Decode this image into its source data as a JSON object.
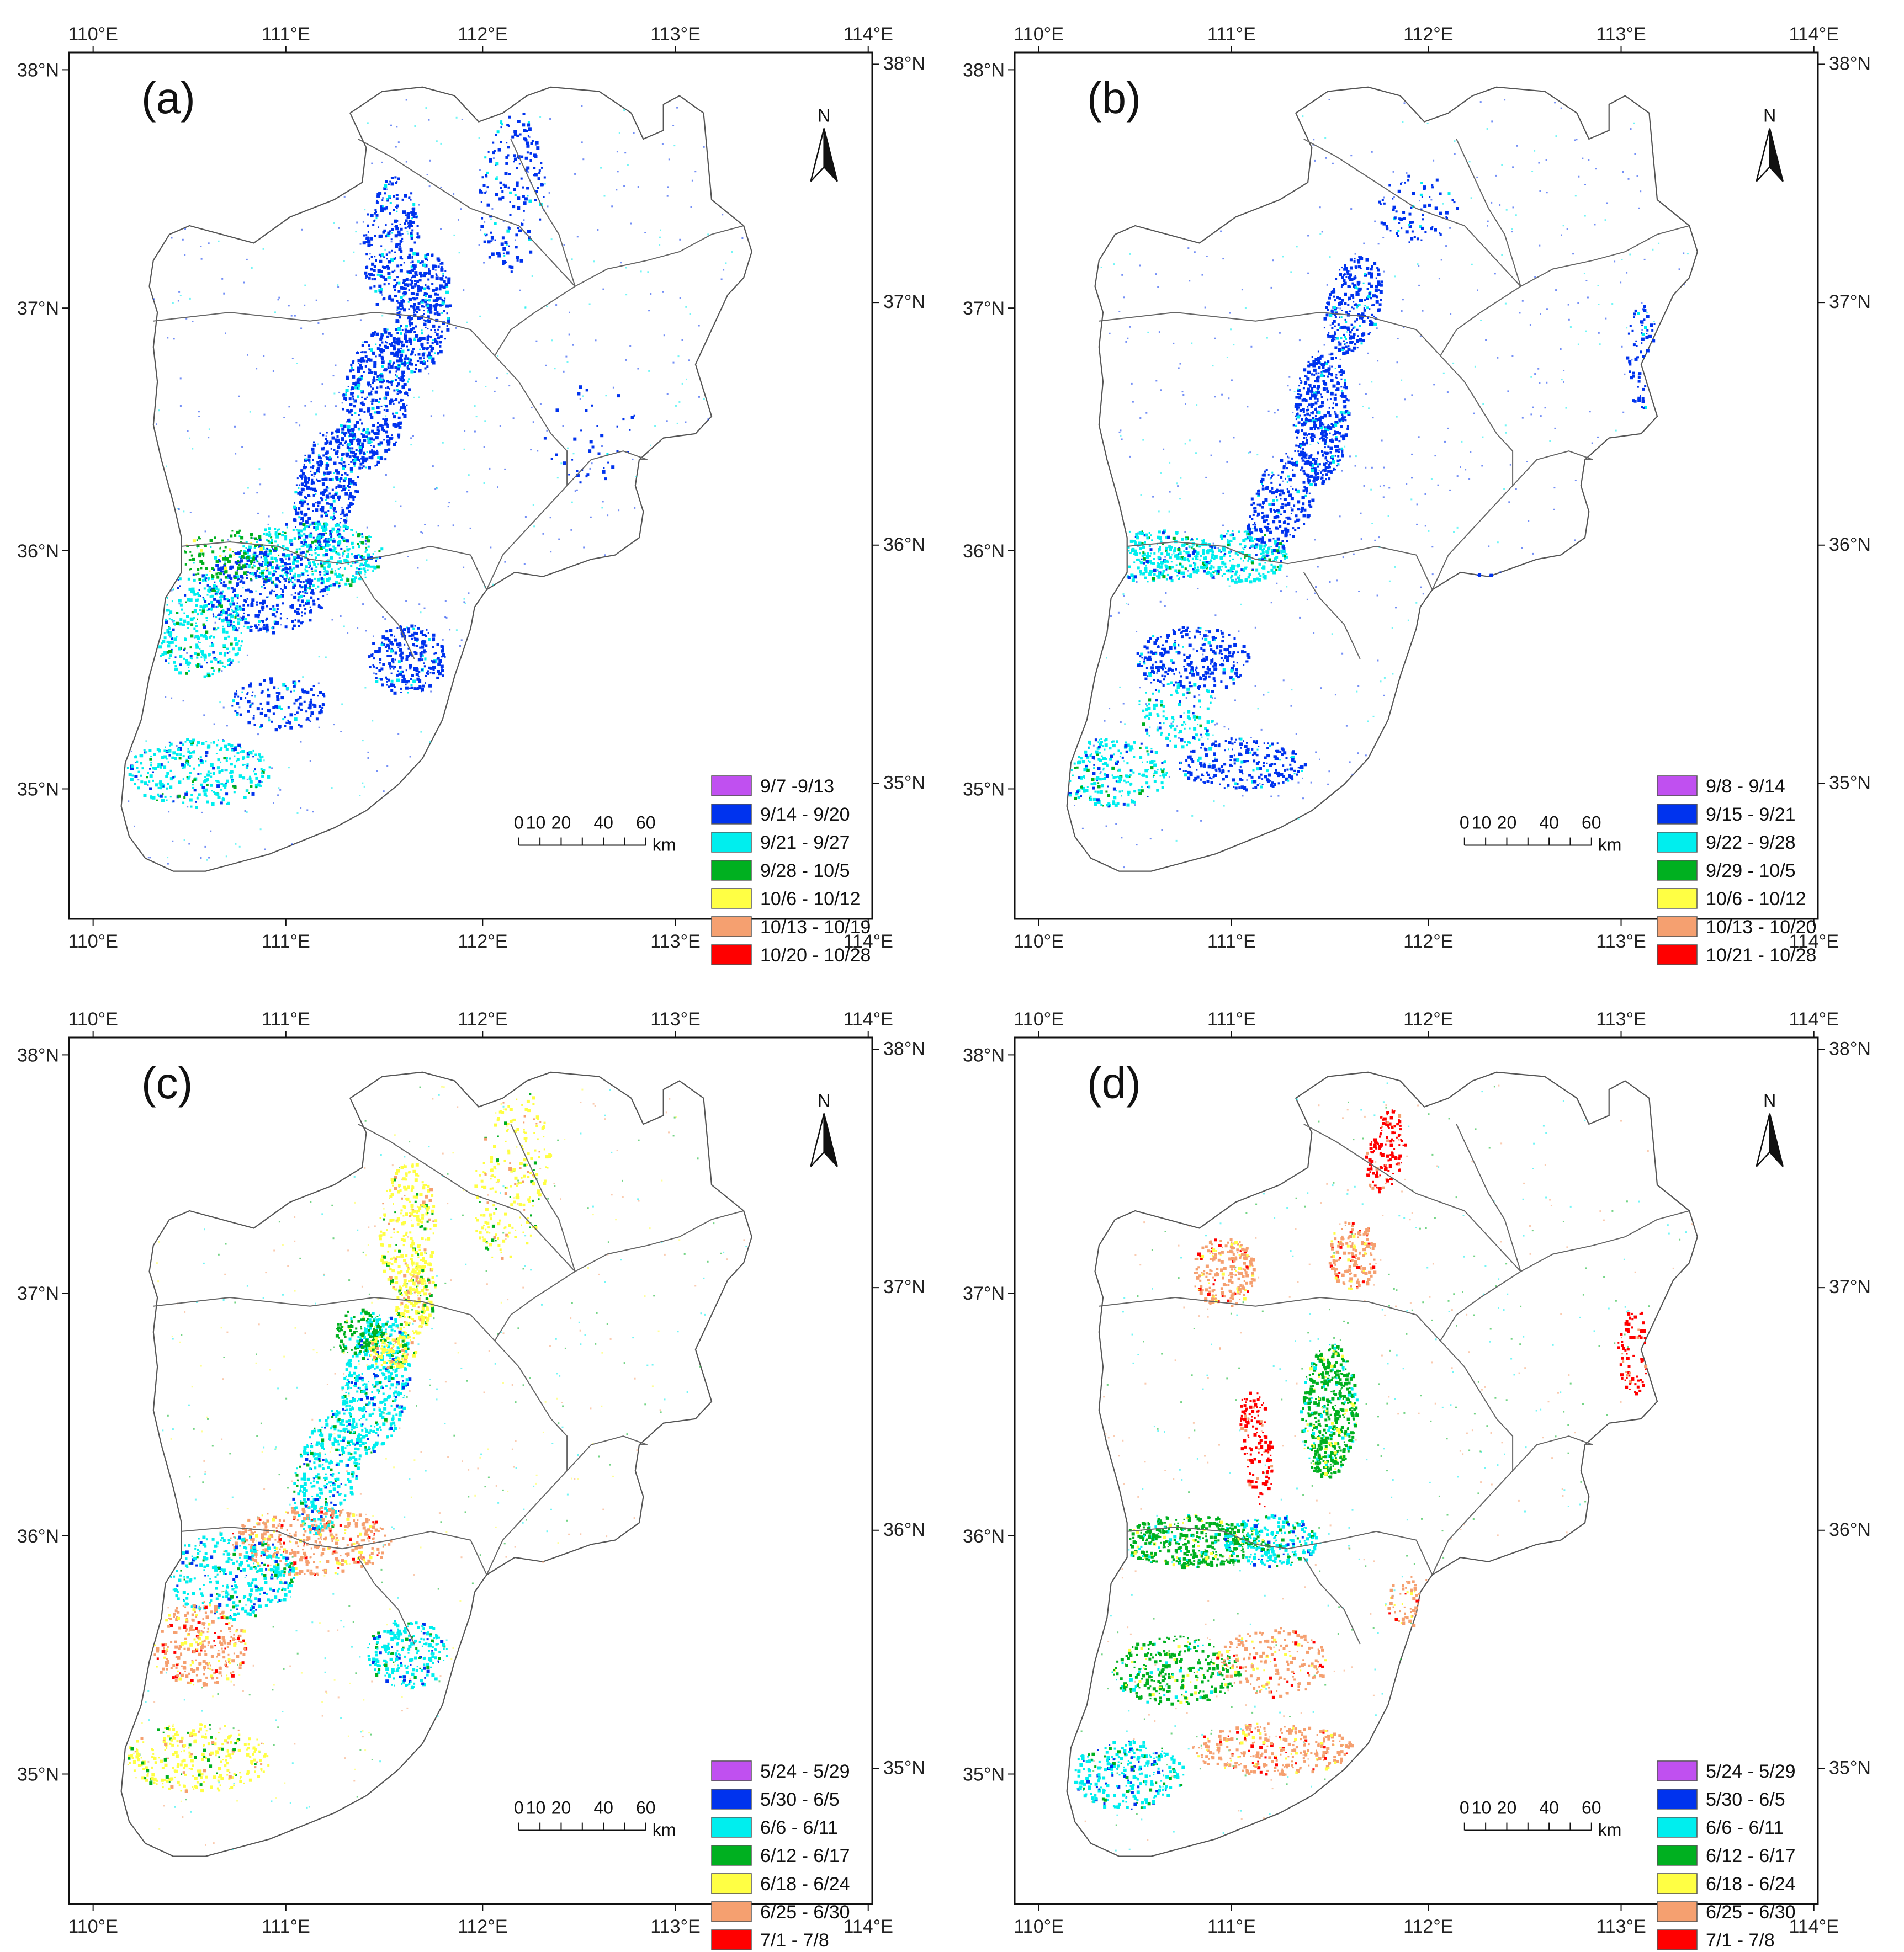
{
  "figure": {
    "x_axis": {
      "ticks": [
        "110°E",
        "111°E",
        "112°E",
        "113°E",
        "114°E"
      ]
    },
    "y_axis": {
      "ticks": [
        "38°N",
        "37°N",
        "36°N",
        "35°N"
      ]
    },
    "north_arrow_label": "N",
    "scale_bar": {
      "labels": [
        "0",
        "10",
        "20",
        "40",
        "60"
      ],
      "unit": "km"
    },
    "colors": {
      "c1": "#c050f0",
      "c2": "#0033ee",
      "c3": "#00eeee",
      "c4": "#00b020",
      "c5": "#ffff44",
      "c6": "#f5a070",
      "c7": "#ff0000"
    },
    "panels": [
      {
        "label": "(a)",
        "id": "a",
        "legend": [
          "9/7 -9/13",
          "9/14 - 9/20",
          "9/21 - 9/27",
          "9/28 - 10/5",
          "10/6 - 10/12",
          "10/13 - 10/19",
          "10/20 - 10/28"
        ]
      },
      {
        "label": "(b)",
        "id": "b",
        "legend": [
          "9/8 - 9/14",
          "9/15 - 9/21",
          "9/22 - 9/28",
          "9/29 - 10/5",
          "10/6 - 10/12",
          "10/13 - 10/20",
          "10/21 - 10/28"
        ]
      },
      {
        "label": "(c)",
        "id": "c",
        "legend": [
          "5/24 - 5/29",
          "5/30 - 6/5",
          "6/6 - 6/11",
          "6/12 - 6/17",
          "6/18 - 6/24",
          "6/25 - 6/30",
          "7/1 - 7/8"
        ]
      },
      {
        "label": "(d)",
        "id": "d",
        "legend": [
          "5/24 - 5/29",
          "5/30 - 6/5",
          "6/6 - 6/11",
          "6/12 - 6/17",
          "6/18 - 6/24",
          "6/25 - 6/30",
          "7/1 - 7/8"
        ]
      }
    ]
  }
}
